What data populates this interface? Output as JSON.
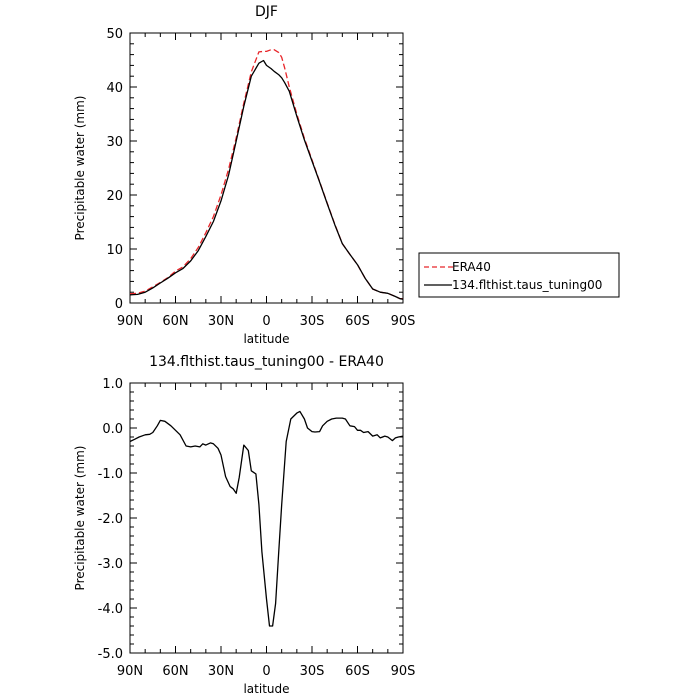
{
  "legend": {
    "items": [
      {
        "label": "ERA40",
        "color": "#e8262a",
        "dash": true
      },
      {
        "label": "134.flthist.taus_tuning00",
        "color": "#000000",
        "dash": false
      }
    ]
  },
  "chart_data": [
    {
      "type": "line",
      "title": "DJF",
      "xlabel": "latitude",
      "ylabel": "Precipitable water (mm)",
      "xlim": [
        90,
        -90
      ],
      "ylim": [
        0,
        50
      ],
      "xticks": [
        90,
        60,
        30,
        0,
        -30,
        -60,
        -90
      ],
      "xticklabels": [
        "90N",
        "60N",
        "30N",
        "0",
        "30S",
        "60S",
        "90S"
      ],
      "yticks": [
        0,
        10,
        20,
        30,
        40,
        50
      ],
      "yticklabels": [
        "0",
        "10",
        "20",
        "30",
        "40",
        "50"
      ],
      "grid": false,
      "legend_position": "right",
      "series": [
        {
          "name": "ERA40",
          "color": "#e8262a",
          "dash": true,
          "x": [
            90,
            85,
            80,
            75,
            70,
            65,
            60,
            55,
            50,
            45,
            40,
            35,
            30,
            25,
            20,
            15,
            10,
            5,
            2,
            0,
            -3,
            -5,
            -8,
            -10,
            -12,
            -15,
            -20,
            -25,
            -30,
            -35,
            -40,
            -45,
            -50,
            -55,
            -60,
            -65,
            -70,
            -75,
            -80,
            -85,
            -88,
            -90
          ],
          "y": [
            1.7,
            1.8,
            2.2,
            3.0,
            3.8,
            4.7,
            5.9,
            6.7,
            8.2,
            10.3,
            13.0,
            16.0,
            20.0,
            24.8,
            30.6,
            37.0,
            42.8,
            46.5,
            46.6,
            46.6,
            46.9,
            46.9,
            46.4,
            45.5,
            43.5,
            40.0,
            35.0,
            30.5,
            26.5,
            22.5,
            18.5,
            14.6,
            11.0,
            9.0,
            7.1,
            4.6,
            2.6,
            2.0,
            1.8,
            1.2,
            0.8,
            0.8
          ]
        },
        {
          "name": "134.flthist.taus_tuning00",
          "color": "#000000",
          "dash": false,
          "x": [
            90,
            85,
            80,
            75,
            70,
            65,
            60,
            55,
            50,
            45,
            40,
            35,
            30,
            25,
            20,
            15,
            10,
            5,
            2,
            0,
            -3,
            -5,
            -8,
            -10,
            -12,
            -15,
            -20,
            -25,
            -30,
            -35,
            -40,
            -45,
            -50,
            -55,
            -60,
            -65,
            -70,
            -75,
            -80,
            -85,
            -88,
            -90
          ],
          "y": [
            1.5,
            1.6,
            2.0,
            2.8,
            3.7,
            4.6,
            5.6,
            6.4,
            7.8,
            9.7,
            12.3,
            15.1,
            18.9,
            23.7,
            30.0,
            36.4,
            42.0,
            44.4,
            44.9,
            44.0,
            43.4,
            42.9,
            42.3,
            41.7,
            40.8,
            39.2,
            34.6,
            30.2,
            26.3,
            22.4,
            18.4,
            14.5,
            11.0,
            9.0,
            7.1,
            4.6,
            2.6,
            2.0,
            1.8,
            1.2,
            0.8,
            0.7
          ]
        }
      ]
    },
    {
      "type": "line",
      "title": "134.flthist.taus_tuning00 - ERA40",
      "xlabel": "latitude",
      "ylabel": "Precipitable water (mm)",
      "xlim": [
        90,
        -90
      ],
      "ylim": [
        -5.0,
        1.0
      ],
      "xticks": [
        90,
        60,
        30,
        0,
        -30,
        -60,
        -90
      ],
      "xticklabels": [
        "90N",
        "60N",
        "30N",
        "0",
        "30S",
        "60S",
        "90S"
      ],
      "yticks": [
        1.0,
        0.0,
        -1.0,
        -2.0,
        -3.0,
        -4.0,
        -5.0
      ],
      "yticklabels": [
        "1.0",
        "0.0",
        "-1.0",
        "-2.0",
        "-3.0",
        "-4.0",
        "-5.0"
      ],
      "grid": false,
      "series": [
        {
          "color": "#000000",
          "dash": false,
          "x": [
            90,
            87,
            84,
            80,
            77,
            75,
            72,
            70,
            67,
            63,
            60,
            57,
            53,
            50,
            47,
            44,
            42,
            40,
            37,
            35,
            32,
            30,
            27,
            24,
            22,
            20,
            18,
            15,
            12,
            10,
            7,
            5,
            3,
            0,
            -2,
            -4,
            -6,
            -8,
            -10,
            -13,
            -16,
            -20,
            -22,
            -25,
            -27,
            -30,
            -32,
            -35,
            -37,
            -40,
            -43,
            -46,
            -50,
            -52,
            -55,
            -58,
            -60,
            -62,
            -64,
            -67,
            -70,
            -73,
            -75,
            -78,
            -80,
            -83,
            -85,
            -87,
            -90
          ],
          "y": [
            -0.3,
            -0.25,
            -0.2,
            -0.15,
            -0.14,
            -0.1,
            0.05,
            0.17,
            0.15,
            0.05,
            -0.05,
            -0.15,
            -0.4,
            -0.42,
            -0.4,
            -0.42,
            -0.35,
            -0.38,
            -0.33,
            -0.35,
            -0.45,
            -0.6,
            -1.08,
            -1.3,
            -1.35,
            -1.45,
            -1.1,
            -0.38,
            -0.5,
            -0.95,
            -1.02,
            -1.7,
            -2.75,
            -3.8,
            -4.4,
            -4.4,
            -3.9,
            -2.8,
            -1.7,
            -0.3,
            0.2,
            0.33,
            0.37,
            0.2,
            0.0,
            -0.08,
            -0.09,
            -0.08,
            0.05,
            0.15,
            0.2,
            0.22,
            0.22,
            0.2,
            0.05,
            0.03,
            -0.05,
            -0.05,
            -0.1,
            -0.08,
            -0.18,
            -0.15,
            -0.22,
            -0.18,
            -0.2,
            -0.28,
            -0.22,
            -0.2,
            -0.18
          ]
        }
      ]
    }
  ]
}
